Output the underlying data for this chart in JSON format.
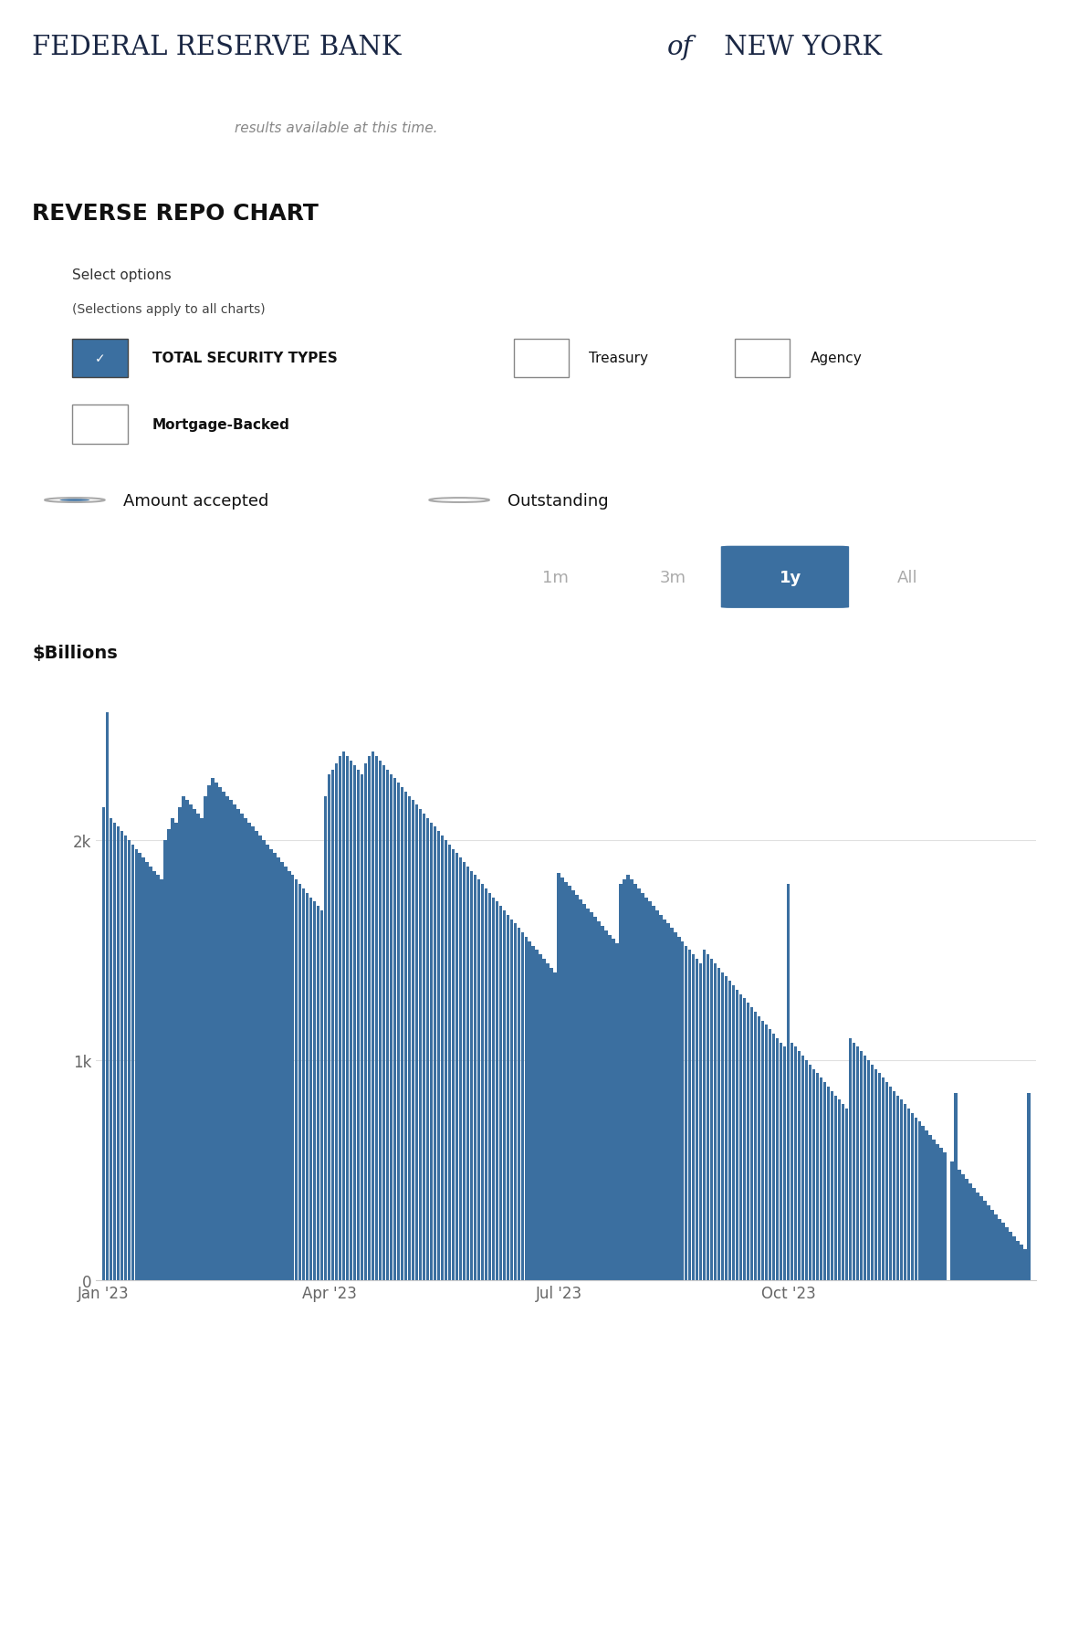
{
  "title_part1": "FEDERAL RESERVE BANK ",
  "title_of": "of",
  "title_part2": " NEW YORK",
  "chart_title": "REVERSE REPO CHART",
  "select_options_text": "Select options",
  "select_options_sub": "(Selections apply to all charts)",
  "checkbox1_label": "TOTAL SECURITY TYPES",
  "checkbox2_label": "Treasury",
  "checkbox3_label": "Agency",
  "checkbox4_label": "Mortgage-Backed",
  "radio1_label": "Amount accepted",
  "radio2_label": "Outstanding",
  "time_buttons": [
    "1m",
    "3m",
    "1y",
    "All"
  ],
  "active_button": "1y",
  "ylabel": "$Billions",
  "ytick_labels": [
    "0",
    "1k",
    "2k"
  ],
  "ytick_vals": [
    0,
    1000,
    2000
  ],
  "xtick_labels": [
    "Jan '23",
    "Apr '23",
    "Jul '23",
    "Oct '23"
  ],
  "xtick_positions": [
    0,
    62,
    125,
    188
  ],
  "bar_color": "#3b6fa0",
  "nav_bg": "#111111",
  "header_bg": "#ffffff",
  "section_bg": "#f0f0f0",
  "active_btn_color": "#3b6fa0",
  "inactive_btn_color": "#aaaaaa",
  "bar_data": [
    2150,
    2580,
    2100,
    2080,
    2060,
    2040,
    2020,
    2000,
    1980,
    1960,
    1940,
    1920,
    1900,
    1880,
    1860,
    1840,
    1820,
    2000,
    2050,
    2100,
    2080,
    2150,
    2200,
    2180,
    2160,
    2140,
    2120,
    2100,
    2200,
    2250,
    2280,
    2260,
    2240,
    2220,
    2200,
    2180,
    2160,
    2140,
    2120,
    2100,
    2080,
    2060,
    2040,
    2020,
    2000,
    1980,
    1960,
    1940,
    1920,
    1900,
    1880,
    1860,
    1840,
    1820,
    1800,
    1780,
    1760,
    1740,
    1720,
    1700,
    1680,
    2200,
    2300,
    2320,
    2350,
    2380,
    2400,
    2380,
    2360,
    2340,
    2320,
    2300,
    2350,
    2380,
    2400,
    2380,
    2360,
    2340,
    2320,
    2300,
    2280,
    2260,
    2240,
    2220,
    2200,
    2180,
    2160,
    2140,
    2120,
    2100,
    2080,
    2060,
    2040,
    2020,
    2000,
    1980,
    1960,
    1940,
    1920,
    1900,
    1880,
    1860,
    1840,
    1820,
    1800,
    1780,
    1760,
    1740,
    1720,
    1700,
    1680,
    1660,
    1640,
    1620,
    1600,
    1580,
    1560,
    1540,
    1520,
    1500,
    1480,
    1460,
    1440,
    1420,
    1400,
    1850,
    1830,
    1810,
    1790,
    1770,
    1750,
    1730,
    1710,
    1690,
    1670,
    1650,
    1630,
    1610,
    1590,
    1570,
    1550,
    1530,
    1800,
    1820,
    1840,
    1820,
    1800,
    1780,
    1760,
    1740,
    1720,
    1700,
    1680,
    1660,
    1640,
    1620,
    1600,
    1580,
    1560,
    1540,
    1520,
    1500,
    1480,
    1460,
    1440,
    1500,
    1480,
    1460,
    1440,
    1420,
    1400,
    1380,
    1360,
    1340,
    1320,
    1300,
    1280,
    1260,
    1240,
    1220,
    1200,
    1180,
    1160,
    1140,
    1120,
    1100,
    1080,
    1060,
    1800,
    1080,
    1060,
    1040,
    1020,
    1000,
    980,
    960,
    940,
    920,
    900,
    880,
    860,
    840,
    820,
    800,
    780,
    1100,
    1080,
    1060,
    1040,
    1020,
    1000,
    980,
    960,
    940,
    920,
    900,
    880,
    860,
    840,
    820,
    800,
    780,
    760,
    740,
    720,
    700,
    680,
    660,
    640,
    620,
    600,
    580,
    0,
    540,
    850,
    500,
    480,
    460,
    440,
    420,
    400,
    380,
    360,
    340,
    320,
    300,
    280,
    260,
    240,
    220,
    200,
    180,
    160,
    140,
    850
  ]
}
